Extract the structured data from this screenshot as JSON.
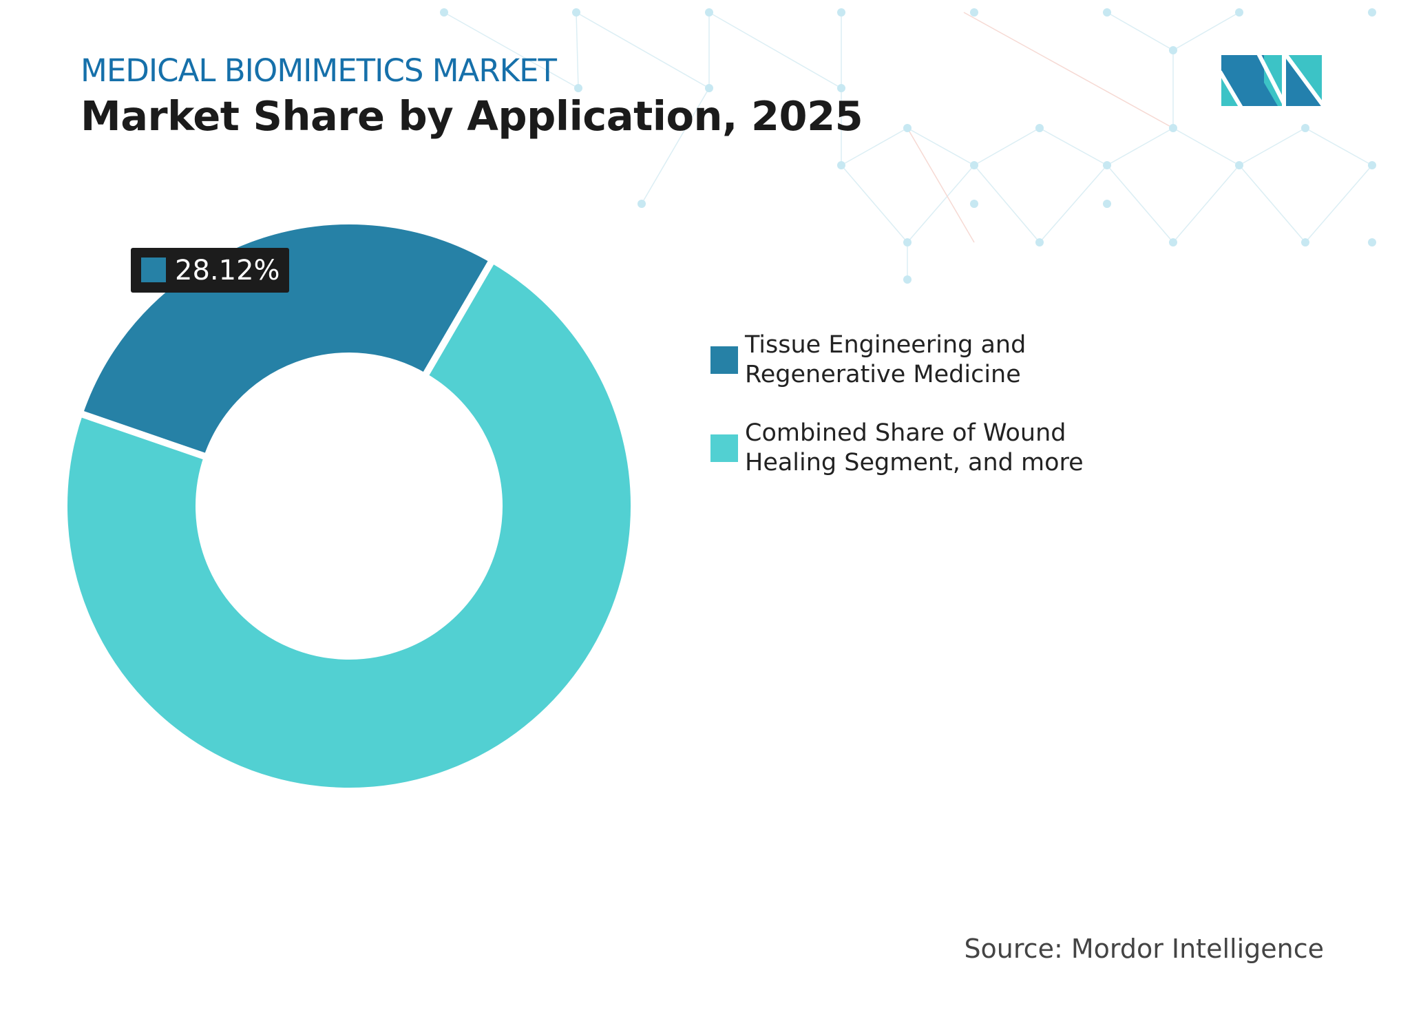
{
  "header": {
    "subtitle": "MEDICAL BIOMIMETICS MARKET",
    "title": "Market Share by Application, 2025"
  },
  "source": "Source: Mordor Intelligence",
  "logo": {
    "text": "MI",
    "colors": [
      "#2380ad",
      "#3cc3c6"
    ]
  },
  "chart_data": {
    "type": "pie",
    "variant": "donut",
    "title": "Market Share by Application, 2025",
    "series": [
      {
        "name": "Tissue Engineering and Regenerative Medicine",
        "value": 28.12,
        "color": "#2681a6"
      },
      {
        "name": "Combined Share of Wound Healing Segment, and more",
        "value": 71.88,
        "color": "#52d0d2"
      }
    ],
    "data_labels": [
      {
        "series": 0,
        "text": "28.12%"
      }
    ],
    "legend_position": "right"
  }
}
